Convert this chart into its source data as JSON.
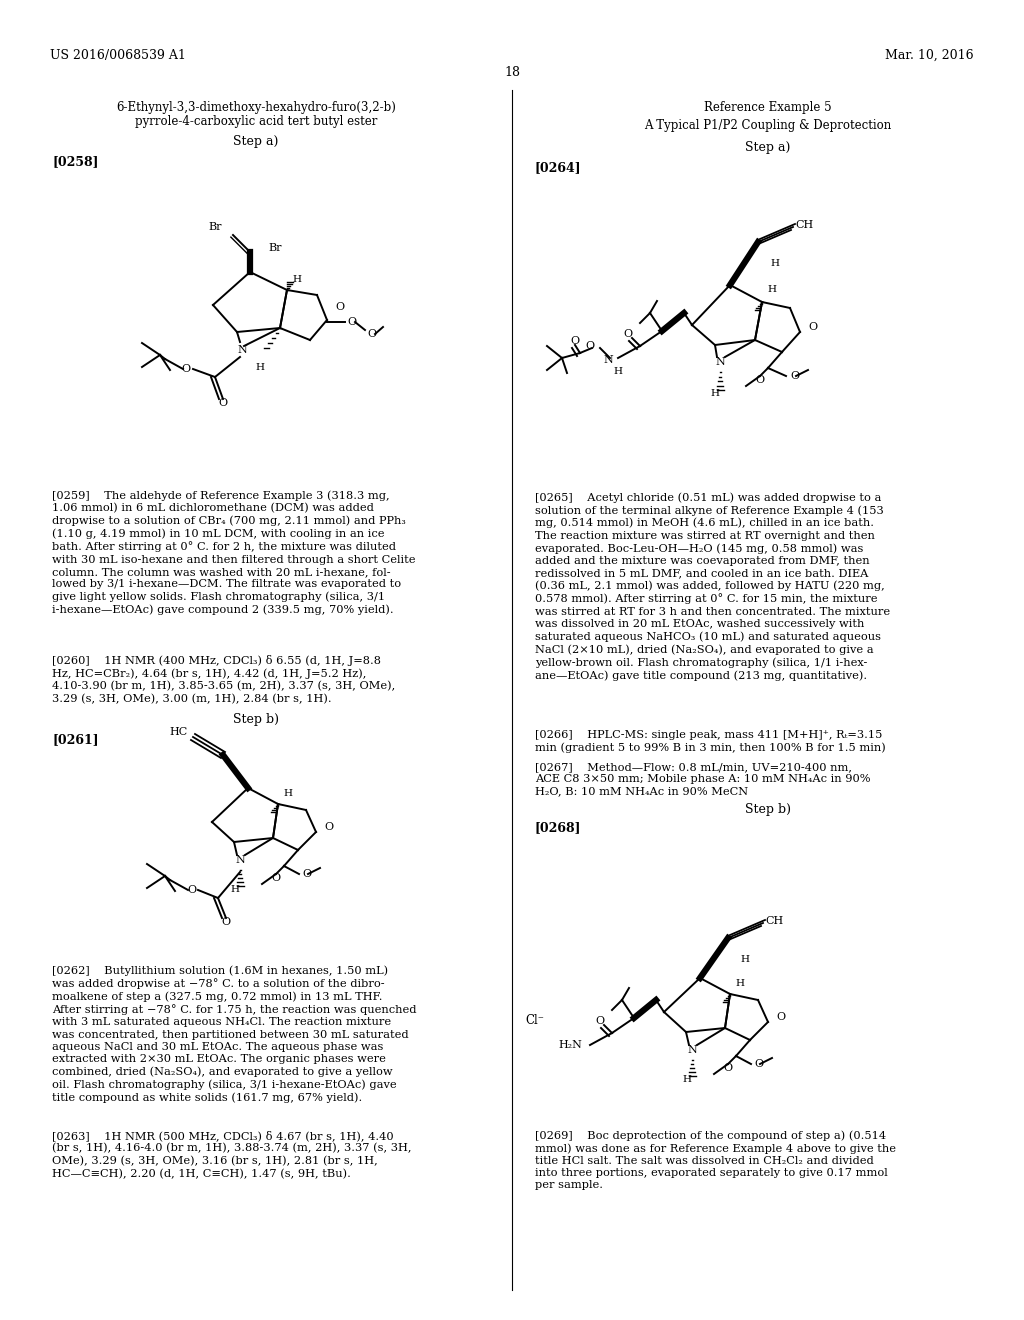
{
  "bg_color": "#ffffff",
  "page_width": 10.24,
  "page_height": 13.2,
  "dpi": 100,
  "header_left": "US 2016/0068539 A1",
  "header_right": "Mar. 10, 2016",
  "page_num": "18",
  "left_title1": "6-Ethynyl-3,3-dimethoxy-hexahydro-furo(3,2-b)",
  "left_title2": "pyrrole-4-carboxylic acid tert butyl ester",
  "left_step_a": "Step a)",
  "left_ref258": "[0258]",
  "left_step_b": "Step b)",
  "left_ref261": "[0261]",
  "right_title": "Reference Example 5",
  "right_subtitle": "A Typical P1/P2 Coupling & Deprotection",
  "right_step_a": "Step a)",
  "right_ref264": "[0264]",
  "right_step_b": "Step b)",
  "right_ref268": "[0268]",
  "para259": "[0259]    The aldehyde of Reference Example 3 (318.3 mg,\n1.06 mmol) in 6 mL dichloromethane (DCM) was added\ndropwise to a solution of CBr₄ (700 mg, 2.11 mmol) and PPh₃\n(1.10 g, 4.19 mmol) in 10 mL DCM, with cooling in an ice\nbath. After stirring at 0° C. for 2 h, the mixture was diluted\nwith 30 mL iso-hexane and then filtered through a short Celite\ncolumn. The column was washed with 20 mL i-hexane, fol-\nlowed by 3/1 i-hexane—DCM. The filtrate was evaporated to\ngive light yellow solids. Flash chromatography (silica, 3/1\ni-hexane—EtOAc) gave compound 2 (339.5 mg, 70% yield).",
  "para260": "[0260]    1H NMR (400 MHz, CDCl₃) δ 6.55 (d, 1H, J=8.8\nHz, HC=CBr₂), 4.64 (br s, 1H), 4.42 (d, 1H, J=5.2 Hz),\n4.10-3.90 (br m, 1H), 3.85-3.65 (m, 2H), 3.37 (s, 3H, OMe),\n3.29 (s, 3H, OMe), 3.00 (m, 1H), 2.84 (br s, 1H).",
  "para262": "[0262]    Butyllithium solution (1.6M in hexanes, 1.50 mL)\nwas added dropwise at −78° C. to a solution of the dibro-\nmoalkene of step a (327.5 mg, 0.72 mmol) in 13 mL THF.\nAfter stirring at −78° C. for 1.75 h, the reaction was quenched\nwith 3 mL saturated aqueous NH₄Cl. The reaction mixture\nwas concentrated, then partitioned between 30 mL saturated\naqueous NaCl and 30 mL EtOAc. The aqueous phase was\nextracted with 2×30 mL EtOAc. The organic phases were\ncombined, dried (Na₂SO₄), and evaporated to give a yellow\noil. Flash chromatography (silica, 3/1 i-hexane-EtOAc) gave\ntitle compound as white solids (161.7 mg, 67% yield).",
  "para263": "[0263]    1H NMR (500 MHz, CDCl₃) δ 4.67 (br s, 1H), 4.40\n(br s, 1H), 4.16-4.0 (br m, 1H), 3.88-3.74 (m, 2H), 3.37 (s, 3H,\nOMe), 3.29 (s, 3H, OMe), 3.16 (br s, 1H), 2.81 (br s, 1H,\nHC—C≡CH), 2.20 (d, 1H, C≡CH), 1.47 (s, 9H, tBu).",
  "para265": "[0265]    Acetyl chloride (0.51 mL) was added dropwise to a\nsolution of the terminal alkyne of Reference Example 4 (153\nmg, 0.514 mmol) in MeOH (4.6 mL), chilled in an ice bath.\nThe reaction mixture was stirred at RT overnight and then\nevaporated. Boc-Leu-OH—H₂O (145 mg, 0.58 mmol) was\nadded and the mixture was coevaporated from DMF, then\nredissolved in 5 mL DMF, and cooled in an ice bath. DIEA\n(0.36 mL, 2.1 mmol) was added, followed by HATU (220 mg,\n0.578 mmol). After stirring at 0° C. for 15 min, the mixture\nwas stirred at RT for 3 h and then concentrated. The mixture\nwas dissolved in 20 mL EtOAc, washed successively with\nsaturated aqueous NaHCO₃ (10 mL) and saturated aqueous\nNaCl (2×10 mL), dried (Na₂SO₄), and evaporated to give a\nyellow-brown oil. Flash chromatography (silica, 1/1 i-hex-\nane—EtOAc) gave title compound (213 mg, quantitative).",
  "para266": "[0266]    HPLC-MS: single peak, mass 411 [M+H]⁺, Rₜ=3.15\nmin (gradient 5 to 99% B in 3 min, then 100% B for 1.5 min)",
  "para267": "[0267]    Method—Flow: 0.8 mL/min, UV=210-400 nm,\nACE C8 3×50 mm; Mobile phase A: 10 mM NH₄Ac in 90%\nH₂O, B: 10 mM NH₄Ac in 90% MeCN",
  "para269": "[0269]    Boc deprotection of the compound of step a) (0.514\nmmol) was done as for Reference Example 4 above to give the\ntitle HCl salt. The salt was dissolved in CH₂Cl₂ and divided\ninto three portions, evaporated separately to give 0.17 mmol\nper sample."
}
